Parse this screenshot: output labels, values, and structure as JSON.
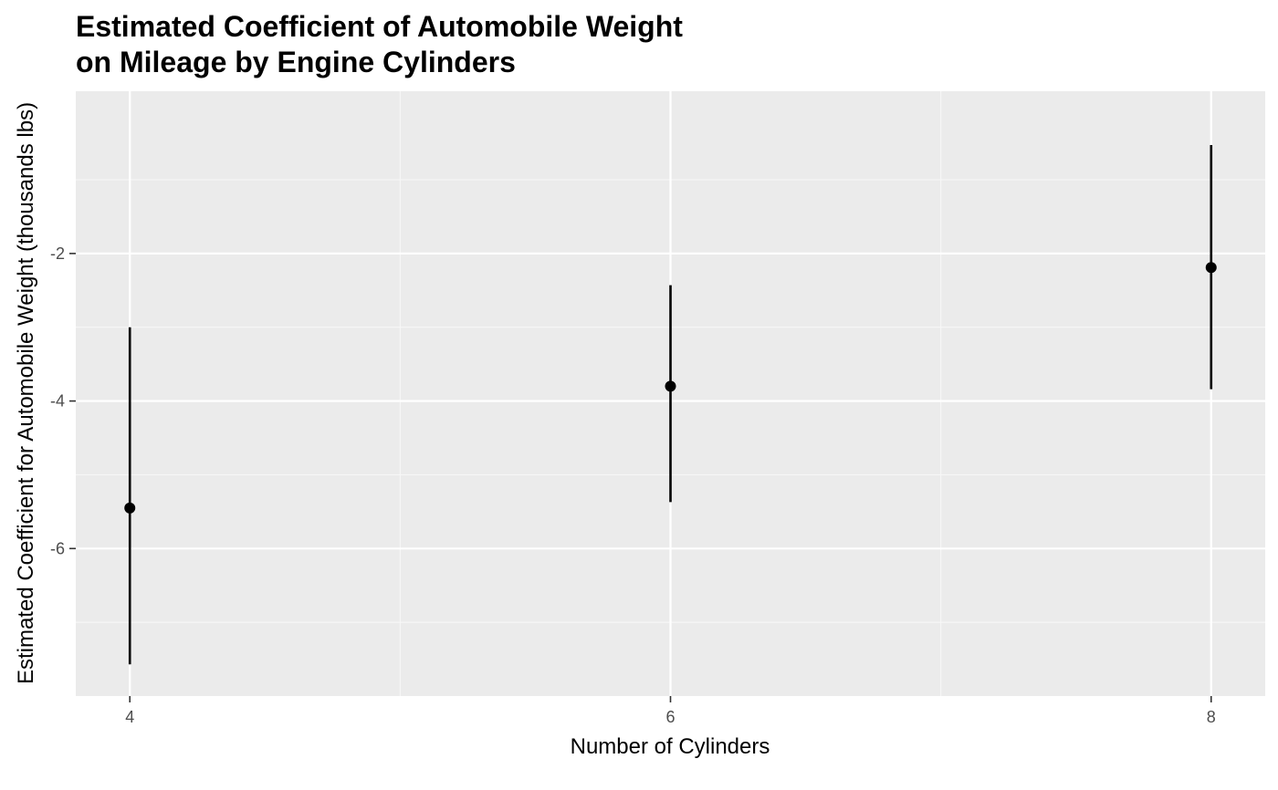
{
  "chart_data": {
    "type": "scatter",
    "title_lines": [
      "Estimated Coefficient of Automobile Weight",
      "on Mileage by Engine Cylinders"
    ],
    "xlabel": "Number of Cylinders",
    "ylabel": "Estimated Coefficient for Automobile Weight (thousands lbs)",
    "x_ticks": [
      4,
      6,
      8
    ],
    "y_ticks": [
      -2,
      -4,
      -6
    ],
    "xlim": [
      3.8,
      8.2
    ],
    "ylim": [
      -8.0,
      0.2
    ],
    "grid": true,
    "points": [
      {
        "x": 4,
        "estimate": -5.45,
        "lower": -7.57,
        "upper": -3.0
      },
      {
        "x": 6,
        "estimate": -3.8,
        "lower": -5.37,
        "upper": -2.43
      },
      {
        "x": 8,
        "estimate": -2.19,
        "lower": -3.84,
        "upper": -0.53
      }
    ],
    "colors": {
      "panel_background": "#ebebeb",
      "grid_major": "#ffffff",
      "grid_minor": "#f7f7f7",
      "marks": "#000000",
      "tick_labels": "#4d4d4d"
    }
  }
}
